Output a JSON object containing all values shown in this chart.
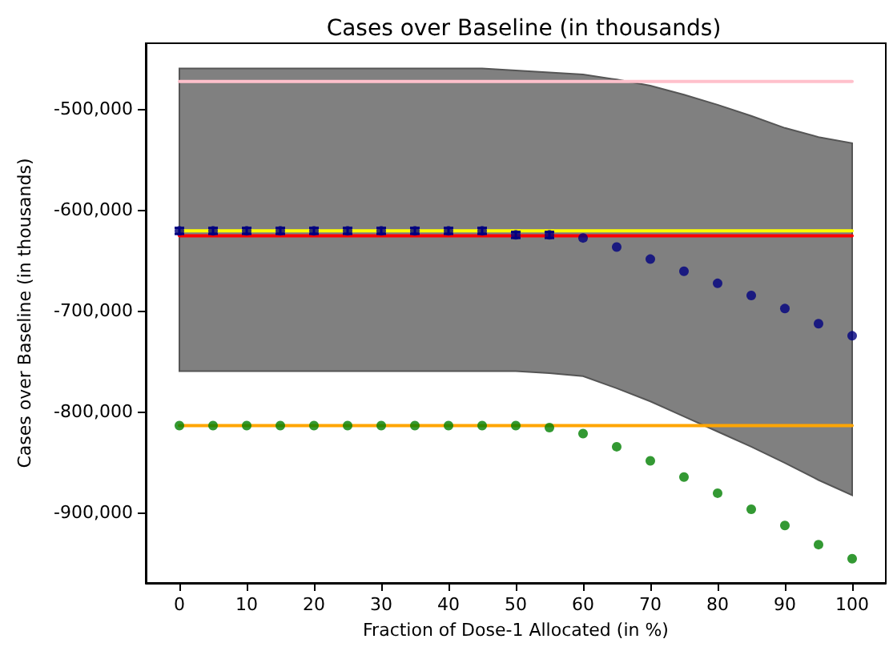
{
  "chart_data": {
    "type": "scatter",
    "title": "Cases over Baseline (in thousands)",
    "xlabel": "Fraction of Dose-1 Allocated (in %)",
    "ylabel": "Cases over Baseline (in thousands)",
    "xlim": [
      -5,
      105
    ],
    "xticks": [
      0,
      10,
      20,
      30,
      40,
      50,
      60,
      70,
      80,
      90,
      100
    ],
    "ylim": [
      -970000,
      -435000
    ],
    "yticks": [
      {
        "value": -500000,
        "label": "-500,000"
      },
      {
        "value": -600000,
        "label": "-600,000"
      },
      {
        "value": -700000,
        "label": "-700,000"
      },
      {
        "value": -800000,
        "label": "-800,000"
      },
      {
        "value": -900000,
        "label": "-900,000"
      }
    ],
    "grid": false,
    "marker": "circle",
    "x": [
      0,
      5,
      10,
      15,
      20,
      25,
      30,
      35,
      40,
      45,
      50,
      55,
      60,
      65,
      70,
      75,
      80,
      85,
      90,
      95,
      100
    ],
    "series": [
      {
        "type": "area",
        "color": "#808080",
        "values": [
          null,
          null,
          null,
          null,
          null,
          null,
          null,
          null,
          null,
          null,
          null,
          null,
          null,
          null,
          null,
          null,
          null,
          null,
          null,
          null,
          null
        ],
        "upper": [
          -460000,
          -460000,
          -460000,
          -460000,
          -460000,
          -460000,
          -460000,
          -460000,
          -460000,
          -460000,
          -462000,
          -464000,
          -466000,
          -471000,
          -477000,
          -486000,
          -496000,
          -507000,
          -519000,
          -528000,
          -534000
        ],
        "lower": [
          -760000,
          -760000,
          -760000,
          -760000,
          -760000,
          -760000,
          -760000,
          -760000,
          -760000,
          -760000,
          -760000,
          -762000,
          -765000,
          -777000,
          -790000,
          -805000,
          -820000,
          -835000,
          -851000,
          -868000,
          -883000
        ]
      },
      {
        "type": "line",
        "color": "#ffc0cb",
        "marker": "none",
        "values": [
          -473000,
          -473000,
          -473000,
          -473000,
          -473000,
          -473000,
          -473000,
          -473000,
          -473000,
          -473000,
          -473000,
          -473000,
          -473000,
          -473000,
          -473000,
          -473000,
          -473000,
          -473000,
          -473000,
          -473000,
          -473000
        ]
      },
      {
        "type": "line",
        "color": "#ffff00",
        "marker": "none",
        "values": [
          -621000,
          -621000,
          -621000,
          -621000,
          -621000,
          -621000,
          -621000,
          -621000,
          -621000,
          -621000,
          -621000,
          -621000,
          -621000,
          -621000,
          -621000,
          -621000,
          -621000,
          -621000,
          -621000,
          -621000,
          -621000
        ]
      },
      {
        "type": "line",
        "color": "#ff0000",
        "marker": "none",
        "values": [
          -626000,
          -626000,
          -626000,
          -626000,
          -626000,
          -626000,
          -626000,
          -626000,
          -626000,
          -626000,
          -626000,
          -626000,
          -626000,
          -626000,
          -626000,
          -626000,
          -626000,
          -626000,
          -626000,
          -626000,
          -626000
        ]
      },
      {
        "type": "line",
        "color": "#ffa500",
        "marker": "none",
        "values": [
          -814000,
          -814000,
          -814000,
          -814000,
          -814000,
          -814000,
          -814000,
          -814000,
          -814000,
          -814000,
          -814000,
          -814000,
          -814000,
          -814000,
          -814000,
          -814000,
          -814000,
          -814000,
          -814000,
          -814000,
          -814000
        ]
      },
      {
        "type": "scatter",
        "color": "#000080",
        "values": [
          -621000,
          -621000,
          -621000,
          -621000,
          -621000,
          -621000,
          -621000,
          -621000,
          -621000,
          -621000,
          -625000,
          -625000,
          -628000,
          -637000,
          -649000,
          -661000,
          -673000,
          -685000,
          -698000,
          -713000,
          -725000
        ],
        "errors": [
          3000,
          3000,
          3000,
          3000,
          3000,
          3000,
          3000,
          3000,
          3000,
          3000,
          3000,
          3000,
          null,
          null,
          null,
          null,
          null,
          null,
          null,
          null,
          null
        ]
      },
      {
        "type": "scatter",
        "color": "#008000",
        "values": [
          -814000,
          -814000,
          -814000,
          -814000,
          -814000,
          -814000,
          -814000,
          -814000,
          -814000,
          -814000,
          -814000,
          -816000,
          -822000,
          -835000,
          -849000,
          -865000,
          -881000,
          -897000,
          -913000,
          -932000,
          -946000
        ]
      }
    ]
  }
}
